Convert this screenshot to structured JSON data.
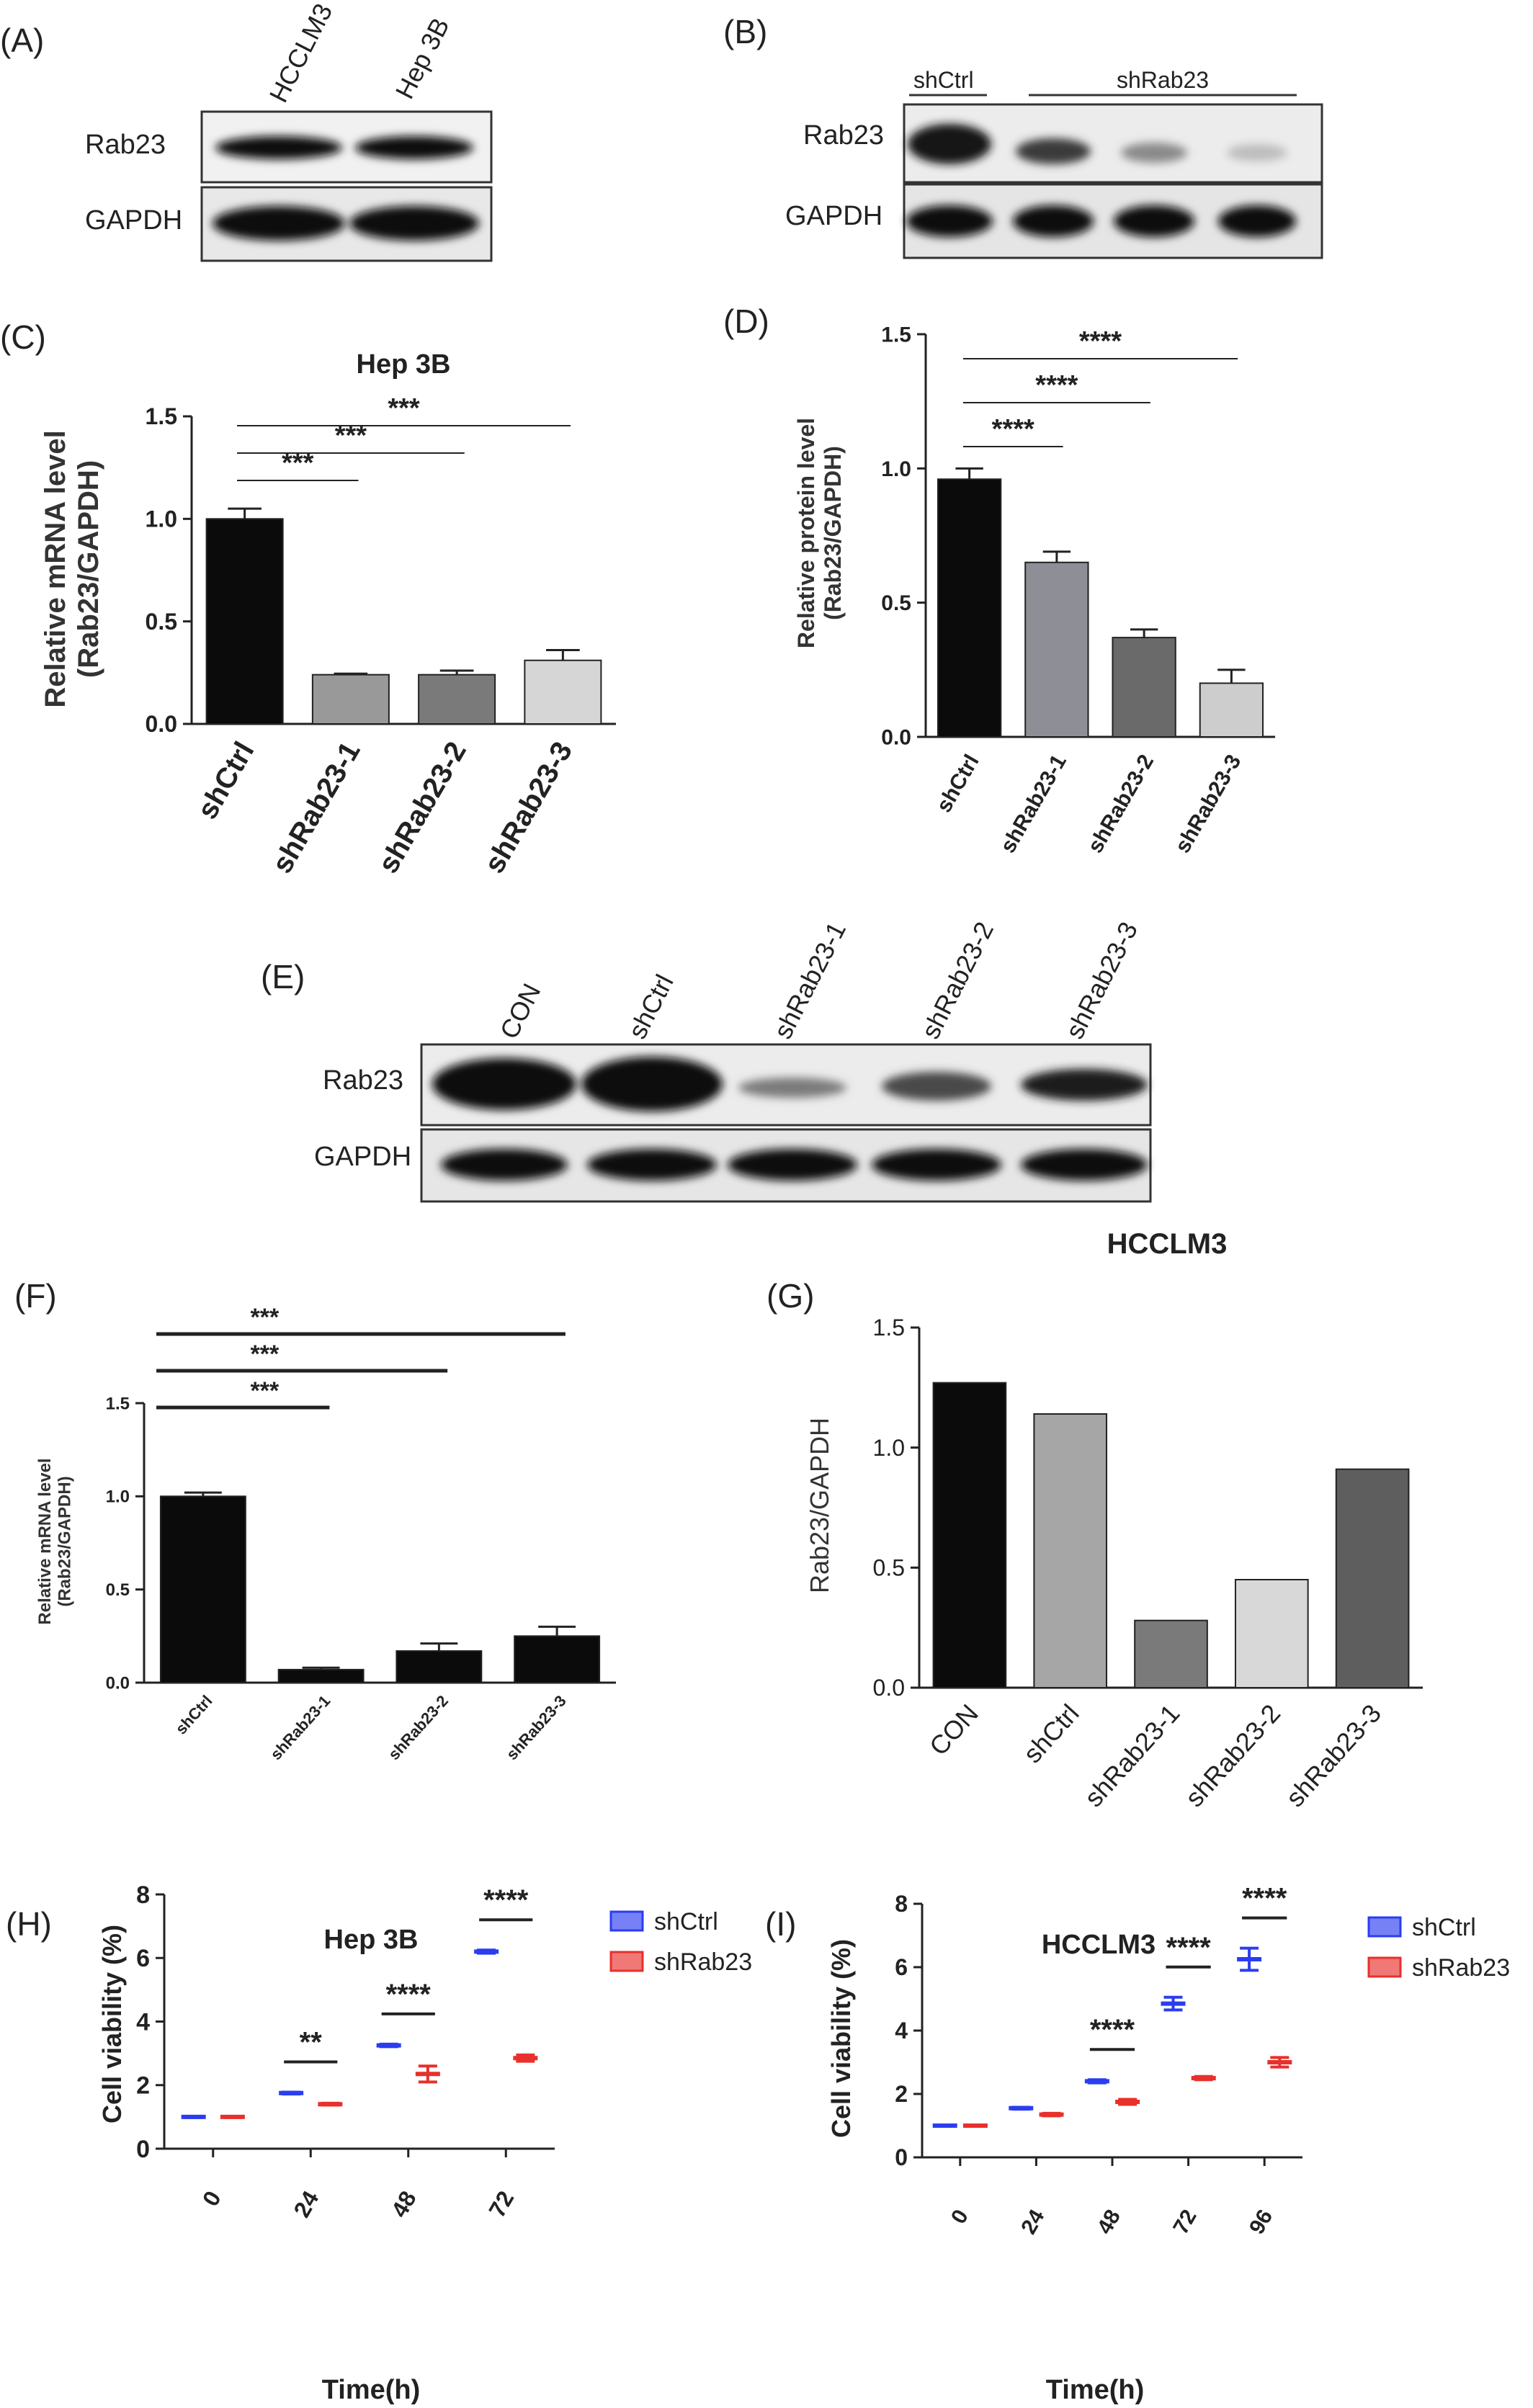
{
  "panels": {
    "A": {
      "label": "(A)",
      "lanes": [
        "HCCLM3",
        "Hep 3B"
      ],
      "rows": [
        "Rab23",
        "GAPDH"
      ]
    },
    "B": {
      "label": "(B)",
      "groups": [
        "shCtrl",
        "shRab23"
      ],
      "rows": [
        "Rab23",
        "GAPDH"
      ]
    },
    "C": {
      "label": "(C)"
    },
    "D": {
      "label": "(D)"
    },
    "E": {
      "label": "(E)",
      "lanes": [
        "CON",
        "shCtrl",
        "shRab23-1",
        "shRab23-2",
        "shRab23-3"
      ],
      "rows": [
        "Rab23",
        "GAPDH"
      ]
    },
    "F": {
      "label": "(F)"
    },
    "G": {
      "label": "(G)"
    },
    "H": {
      "label": "(H)"
    },
    "I": {
      "label": "(I)"
    }
  },
  "colors": {
    "black": "#0b0b0b",
    "blue": "#2b3df0",
    "red": "#e8302c"
  },
  "chart_data": [
    {
      "id": "C",
      "type": "bar",
      "title": "Hep 3B",
      "ylabel": "Relative mRNA level\n(Rab23/GAPDH)",
      "xlabel": "",
      "categories": [
        "shCtrl",
        "shRab23-1",
        "shRab23-2",
        "shRab23-3"
      ],
      "values": [
        1.0,
        0.24,
        0.24,
        0.31
      ],
      "errors": [
        0.05,
        0.005,
        0.02,
        0.05
      ],
      "colors": [
        "#0b0b0b",
        "#999999",
        "#7a7a7a",
        "#d6d6d6"
      ],
      "ylim": [
        0,
        1.5
      ],
      "yticks": [
        "0.0",
        "0.5",
        "1.0",
        "1.5"
      ],
      "significance": [
        {
          "from": "shCtrl",
          "to": "shRab23-1",
          "label": "***"
        },
        {
          "from": "shCtrl",
          "to": "shRab23-2",
          "label": "***"
        },
        {
          "from": "shCtrl",
          "to": "shRab23-3",
          "label": "***"
        }
      ]
    },
    {
      "id": "D",
      "type": "bar",
      "title": "",
      "ylabel": "Relative protein level\n(Rab23/GAPDH)",
      "xlabel": "",
      "categories": [
        "shCtrl",
        "shRab23-1",
        "shRab23-2",
        "shRab23-3"
      ],
      "values": [
        0.96,
        0.65,
        0.37,
        0.2
      ],
      "errors": [
        0.04,
        0.04,
        0.03,
        0.05
      ],
      "colors": [
        "#0b0b0b",
        "#8e8e96",
        "#6a6a6a",
        "#cdcdcd"
      ],
      "ylim": [
        0,
        1.5
      ],
      "yticks": [
        "0.0",
        "0.5",
        "1.0",
        "1.5"
      ],
      "significance": [
        {
          "from": "shCtrl",
          "to": "shRab23-1",
          "label": "****"
        },
        {
          "from": "shCtrl",
          "to": "shRab23-2",
          "label": "****"
        },
        {
          "from": "shCtrl",
          "to": "shRab23-3",
          "label": "****"
        }
      ]
    },
    {
      "id": "F",
      "type": "bar",
      "title": "",
      "ylabel": "Relative mRNA level\n(Rab23/GAPDH)",
      "xlabel": "",
      "categories": [
        "shCtrl",
        "shRab23-1",
        "shRab23-2",
        "shRab23-3"
      ],
      "values": [
        1.0,
        0.07,
        0.17,
        0.25
      ],
      "errors": [
        0.02,
        0.01,
        0.04,
        0.05
      ],
      "colors": [
        "#0b0b0b",
        "#0b0b0b",
        "#0b0b0b",
        "#0b0b0b"
      ],
      "ylim": [
        0,
        1.5
      ],
      "yticks": [
        "0.0",
        "0.5",
        "1.0",
        "1.5"
      ],
      "significance": [
        {
          "from": "shCtrl",
          "to": "shRab23-1",
          "label": "***"
        },
        {
          "from": "shCtrl",
          "to": "shRab23-2",
          "label": "***"
        },
        {
          "from": "shCtrl",
          "to": "shRab23-3",
          "label": "***"
        }
      ]
    },
    {
      "id": "G",
      "type": "bar",
      "title": "HCCLM3",
      "ylabel": "Rab23/GAPDH",
      "xlabel": "",
      "categories": [
        "CON",
        "shCtrl",
        "shRab23-1",
        "shRab23-2",
        "shRab23-3"
      ],
      "values": [
        1.27,
        1.14,
        0.28,
        0.45,
        0.91
      ],
      "colors": [
        "#0b0b0b",
        "#a6a6a6",
        "#7a7a7a",
        "#d8d8d8",
        "#5e5e5e"
      ],
      "ylim": [
        0,
        1.5
      ],
      "yticks": [
        "0.0",
        "0.5",
        "1.0",
        "1.5"
      ]
    },
    {
      "id": "H",
      "type": "scatter",
      "title": "Hep 3B",
      "ylabel": "Cell viability  (%)",
      "xlabel": "Time(h)",
      "categories": [
        "0",
        "24",
        "48",
        "72"
      ],
      "ylim": [
        0,
        8
      ],
      "yticks": [
        "0",
        "2",
        "4",
        "6",
        "8"
      ],
      "legend": "top-right",
      "series": [
        {
          "name": "shCtrl",
          "color": "#2b3df0",
          "values": [
            1.0,
            1.75,
            3.25,
            6.2
          ],
          "errors": [
            0.02,
            0.03,
            0.04,
            0.05
          ]
        },
        {
          "name": "shRab23",
          "color": "#e8302c",
          "values": [
            1.0,
            1.4,
            2.35,
            2.85
          ],
          "errors": [
            0.02,
            0.03,
            0.25,
            0.1
          ]
        }
      ],
      "significance": [
        "",
        "**",
        "****",
        "****"
      ]
    },
    {
      "id": "I",
      "type": "scatter",
      "title": "HCCLM3",
      "ylabel": "Cell viability  (%)",
      "xlabel": "Time(h)",
      "categories": [
        "0",
        "24",
        "48",
        "72",
        "96"
      ],
      "ylim": [
        0,
        8
      ],
      "yticks": [
        "0",
        "2",
        "4",
        "6",
        "8"
      ],
      "legend": "top-right",
      "series": [
        {
          "name": "shCtrl",
          "color": "#2b3df0",
          "values": [
            1.0,
            1.55,
            2.4,
            4.85,
            6.25
          ],
          "errors": [
            0.02,
            0.03,
            0.05,
            0.2,
            0.35
          ]
        },
        {
          "name": "shRab23",
          "color": "#e8302c",
          "values": [
            1.0,
            1.35,
            1.75,
            2.5,
            3.0
          ],
          "errors": [
            0.02,
            0.04,
            0.08,
            0.05,
            0.15
          ]
        }
      ],
      "significance": [
        "",
        "",
        "****",
        "****",
        "****"
      ]
    }
  ]
}
